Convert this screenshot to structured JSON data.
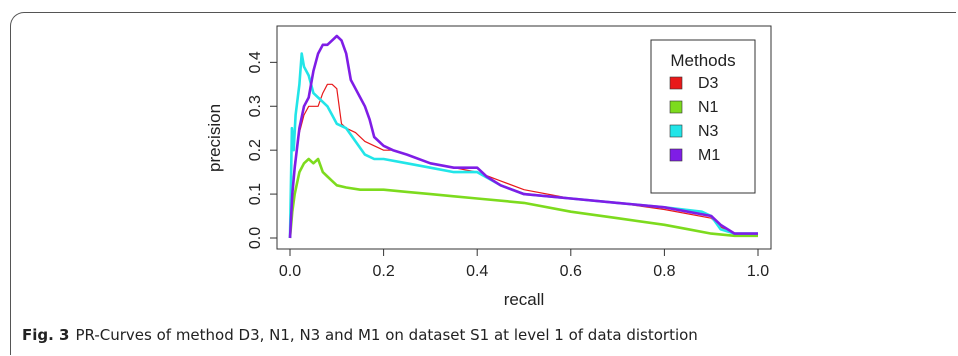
{
  "caption": {
    "label": "Fig. 3",
    "text": "PR-Curves of method D3, N1, N3 and M1 on dataset S1 at level 1 of data distortion"
  },
  "chart_data": {
    "type": "line",
    "xlabel": "recall",
    "ylabel": "precision",
    "xlim": [
      0,
      1
    ],
    "ylim": [
      0,
      0.46
    ],
    "xticks": [
      "0.0",
      "0.2",
      "0.4",
      "0.6",
      "0.8",
      "1.0"
    ],
    "yticks": [
      "0.0",
      "0.1",
      "0.2",
      "0.3",
      "0.4"
    ],
    "grid": false,
    "legend": {
      "title": "Methods",
      "placement": "top-right",
      "entries": [
        "D3",
        "N1",
        "N3",
        "M1"
      ]
    },
    "series": [
      {
        "name": "D3",
        "color": "#e8191a",
        "x": [
          0,
          0.005,
          0.01,
          0.02,
          0.03,
          0.04,
          0.05,
          0.06,
          0.07,
          0.08,
          0.09,
          0.1,
          0.11,
          0.12,
          0.14,
          0.16,
          0.18,
          0.2,
          0.22,
          0.25,
          0.3,
          0.35,
          0.4,
          0.45,
          0.5,
          0.6,
          0.7,
          0.8,
          0.9,
          0.92,
          0.95,
          1.0
        ],
        "y": [
          0,
          0.11,
          0.17,
          0.24,
          0.28,
          0.3,
          0.3,
          0.3,
          0.33,
          0.35,
          0.35,
          0.34,
          0.26,
          0.25,
          0.24,
          0.22,
          0.21,
          0.2,
          0.2,
          0.19,
          0.17,
          0.16,
          0.15,
          0.13,
          0.11,
          0.09,
          0.08,
          0.065,
          0.045,
          0.025,
          0.01,
          0.01
        ]
      },
      {
        "name": "N1",
        "color": "#7ddb1e",
        "x": [
          0,
          0.005,
          0.01,
          0.02,
          0.03,
          0.04,
          0.05,
          0.06,
          0.07,
          0.08,
          0.09,
          0.1,
          0.12,
          0.15,
          0.2,
          0.25,
          0.3,
          0.35,
          0.4,
          0.5,
          0.6,
          0.7,
          0.8,
          0.85,
          0.9,
          0.95,
          1.0
        ],
        "y": [
          0,
          0.06,
          0.1,
          0.15,
          0.17,
          0.18,
          0.17,
          0.18,
          0.15,
          0.14,
          0.13,
          0.12,
          0.115,
          0.11,
          0.11,
          0.105,
          0.1,
          0.095,
          0.09,
          0.08,
          0.06,
          0.045,
          0.03,
          0.02,
          0.01,
          0.005,
          0.005
        ]
      },
      {
        "name": "N3",
        "color": "#22e5e8",
        "x": [
          0,
          0.004,
          0.008,
          0.012,
          0.02,
          0.025,
          0.03,
          0.04,
          0.05,
          0.06,
          0.07,
          0.08,
          0.09,
          0.1,
          0.12,
          0.14,
          0.16,
          0.18,
          0.2,
          0.25,
          0.3,
          0.35,
          0.4,
          0.45,
          0.5,
          0.6,
          0.7,
          0.8,
          0.88,
          0.9,
          0.92,
          0.95,
          1.0
        ],
        "y": [
          0,
          0.25,
          0.2,
          0.28,
          0.35,
          0.42,
          0.39,
          0.37,
          0.33,
          0.32,
          0.31,
          0.3,
          0.28,
          0.26,
          0.25,
          0.22,
          0.19,
          0.18,
          0.18,
          0.17,
          0.16,
          0.15,
          0.15,
          0.12,
          0.1,
          0.09,
          0.08,
          0.07,
          0.06,
          0.05,
          0.02,
          0.01,
          0.01
        ]
      },
      {
        "name": "M1",
        "color": "#7f1de6",
        "x": [
          0,
          0.005,
          0.01,
          0.02,
          0.03,
          0.04,
          0.05,
          0.06,
          0.07,
          0.08,
          0.09,
          0.1,
          0.11,
          0.12,
          0.13,
          0.14,
          0.15,
          0.16,
          0.17,
          0.18,
          0.2,
          0.22,
          0.25,
          0.3,
          0.35,
          0.4,
          0.42,
          0.45,
          0.5,
          0.6,
          0.7,
          0.8,
          0.85,
          0.9,
          0.92,
          0.95,
          1.0
        ],
        "y": [
          0,
          0.1,
          0.16,
          0.25,
          0.3,
          0.32,
          0.38,
          0.42,
          0.44,
          0.44,
          0.45,
          0.46,
          0.45,
          0.42,
          0.36,
          0.34,
          0.32,
          0.3,
          0.27,
          0.23,
          0.21,
          0.2,
          0.19,
          0.17,
          0.16,
          0.16,
          0.14,
          0.12,
          0.1,
          0.09,
          0.08,
          0.07,
          0.06,
          0.05,
          0.03,
          0.01,
          0.01
        ]
      }
    ]
  }
}
